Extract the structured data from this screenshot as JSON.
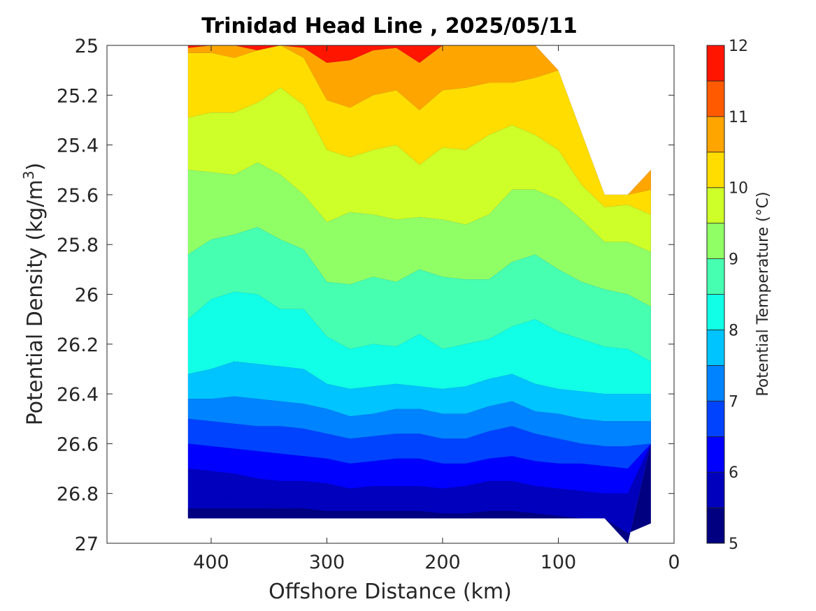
{
  "chart_data": {
    "type": "contourf",
    "title": "Trinidad Head Line , 2025/05/11",
    "xlabel": "Offshore Distance (km)",
    "ylabel_main": "Potential Density (kg/m",
    "ylabel_sup": "3",
    "ylabel_close": ")",
    "colorbar_label": "Potential Temperature (°C)",
    "x_reversed": true,
    "y_reversed": true,
    "xlim": [
      0,
      490
    ],
    "ylim": [
      25,
      27
    ],
    "xticks": [
      400,
      300,
      200,
      100,
      0
    ],
    "xtick_labels": [
      "400",
      "300",
      "200",
      "100",
      "0"
    ],
    "yticks": [
      25,
      25.2,
      25.4,
      25.6,
      25.8,
      26,
      26.2,
      26.4,
      26.6,
      26.8,
      27
    ],
    "ytick_labels": [
      "25",
      "25.2",
      "25.4",
      "25.6",
      "25.8",
      "26",
      "26.2",
      "26.4",
      "26.6",
      "26.8",
      "27"
    ],
    "clim": [
      5,
      12
    ],
    "level_step": 0.5,
    "cbticks": [
      5,
      6,
      7,
      8,
      9,
      10,
      11,
      12
    ],
    "cbtick_labels": [
      "5",
      "6",
      "7",
      "8",
      "9",
      "10",
      "11",
      "12"
    ],
    "level_colors": [
      "#000080",
      "#0000bd",
      "#0000ff",
      "#0043ff",
      "#0083ff",
      "#00c4ff",
      "#11ffe6",
      "#46ffb1",
      "#90ff66",
      "#ceff28",
      "#ffdd00",
      "#ffa500",
      "#ff5a00",
      "#ff1500"
    ],
    "stations_km": [
      420,
      400,
      380,
      360,
      340,
      320,
      300,
      280,
      260,
      240,
      220,
      200,
      180,
      160,
      140,
      120,
      100,
      80,
      60,
      40,
      20
    ],
    "station_depth_limit": [
      26.9,
      26.9,
      26.9,
      26.9,
      26.9,
      26.9,
      26.9,
      26.9,
      26.9,
      26.9,
      26.9,
      26.9,
      26.9,
      26.9,
      26.9,
      26.9,
      26.9,
      26.9,
      26.9,
      27.0,
      26.6
    ],
    "station_top_limit": [
      25.0,
      25.0,
      25.0,
      25.0,
      25.0,
      25.0,
      25.0,
      25.0,
      25.0,
      25.0,
      25.0,
      25.0,
      25.0,
      25.0,
      25.0,
      25.0,
      25.1,
      25.35,
      25.6,
      25.6,
      25.5
    ],
    "isotherms": [
      {
        "temp": 11.0,
        "sigma": [
          25.01,
          25.0,
          25.0,
          25.02,
          25.0,
          25.01,
          25.07,
          25.06,
          25.02,
          25.01,
          25.07,
          25.0,
          25.0,
          25.0,
          25.0,
          25.0,
          25.1,
          25.35,
          25.6,
          25.6,
          25.5
        ]
      },
      {
        "temp": 10.5,
        "sigma": [
          25.03,
          25.03,
          25.05,
          25.02,
          25.0,
          25.05,
          25.22,
          25.25,
          25.2,
          25.18,
          25.26,
          25.18,
          25.17,
          25.15,
          25.15,
          25.13,
          25.1,
          25.35,
          25.6,
          25.6,
          25.58
        ]
      },
      {
        "temp": 10.0,
        "sigma": [
          25.29,
          25.27,
          25.27,
          25.23,
          25.17,
          25.24,
          25.42,
          25.45,
          25.42,
          25.4,
          25.48,
          25.41,
          25.42,
          25.36,
          25.32,
          25.36,
          25.42,
          25.56,
          25.65,
          25.64,
          25.68
        ]
      },
      {
        "temp": 9.5,
        "sigma": [
          25.5,
          25.51,
          25.52,
          25.47,
          25.52,
          25.6,
          25.71,
          25.67,
          25.68,
          25.7,
          25.69,
          25.7,
          25.72,
          25.68,
          25.58,
          25.58,
          25.62,
          25.7,
          25.79,
          25.79,
          25.83
        ]
      },
      {
        "temp": 9.0,
        "sigma": [
          25.84,
          25.78,
          25.76,
          25.73,
          25.78,
          25.82,
          25.95,
          25.96,
          25.93,
          25.95,
          25.9,
          25.93,
          25.94,
          25.94,
          25.87,
          25.84,
          25.9,
          25.95,
          25.98,
          26.0,
          26.05
        ]
      },
      {
        "temp": 8.5,
        "sigma": [
          26.1,
          26.02,
          25.99,
          26.0,
          26.06,
          26.06,
          26.17,
          26.22,
          26.2,
          26.21,
          26.16,
          26.22,
          26.2,
          26.18,
          26.13,
          26.1,
          26.15,
          26.18,
          26.21,
          26.22,
          26.27
        ]
      },
      {
        "temp": 8.0,
        "sigma": [
          26.32,
          26.3,
          26.27,
          26.28,
          26.29,
          26.3,
          26.36,
          26.38,
          26.37,
          26.36,
          26.37,
          26.38,
          26.37,
          26.34,
          26.32,
          26.36,
          26.38,
          26.39,
          26.4,
          26.4,
          26.4
        ]
      },
      {
        "temp": 7.5,
        "sigma": [
          26.42,
          26.42,
          26.41,
          26.42,
          26.43,
          26.44,
          26.46,
          26.49,
          26.48,
          26.46,
          26.46,
          26.48,
          26.48,
          26.45,
          26.43,
          26.47,
          26.48,
          26.5,
          26.51,
          26.51,
          26.51
        ]
      },
      {
        "temp": 7.0,
        "sigma": [
          26.5,
          26.51,
          26.52,
          26.53,
          26.53,
          26.54,
          26.56,
          26.58,
          26.57,
          26.56,
          26.56,
          26.58,
          26.58,
          26.55,
          26.53,
          26.56,
          26.58,
          26.6,
          26.61,
          26.61,
          26.61
        ]
      },
      {
        "temp": 6.5,
        "sigma": [
          26.6,
          26.61,
          26.62,
          26.63,
          26.64,
          26.65,
          26.66,
          26.68,
          26.67,
          26.66,
          26.66,
          26.68,
          26.68,
          26.66,
          26.65,
          26.67,
          26.68,
          26.68,
          26.69,
          26.7,
          26.7
        ]
      },
      {
        "temp": 6.0,
        "sigma": [
          26.7,
          26.71,
          26.72,
          26.74,
          26.75,
          26.75,
          26.76,
          26.78,
          26.77,
          26.77,
          26.77,
          26.78,
          26.77,
          26.75,
          26.75,
          26.77,
          26.78,
          26.79,
          26.8,
          26.8,
          26.8
        ]
      },
      {
        "temp": 5.5,
        "sigma": [
          26.78,
          26.8,
          26.82,
          26.84,
          26.85,
          26.86,
          26.87,
          26.87,
          26.87,
          26.87,
          26.87,
          26.88,
          26.88,
          26.87,
          26.87,
          26.88,
          26.89,
          26.9,
          26.9,
          26.92,
          26.92
        ]
      }
    ]
  }
}
